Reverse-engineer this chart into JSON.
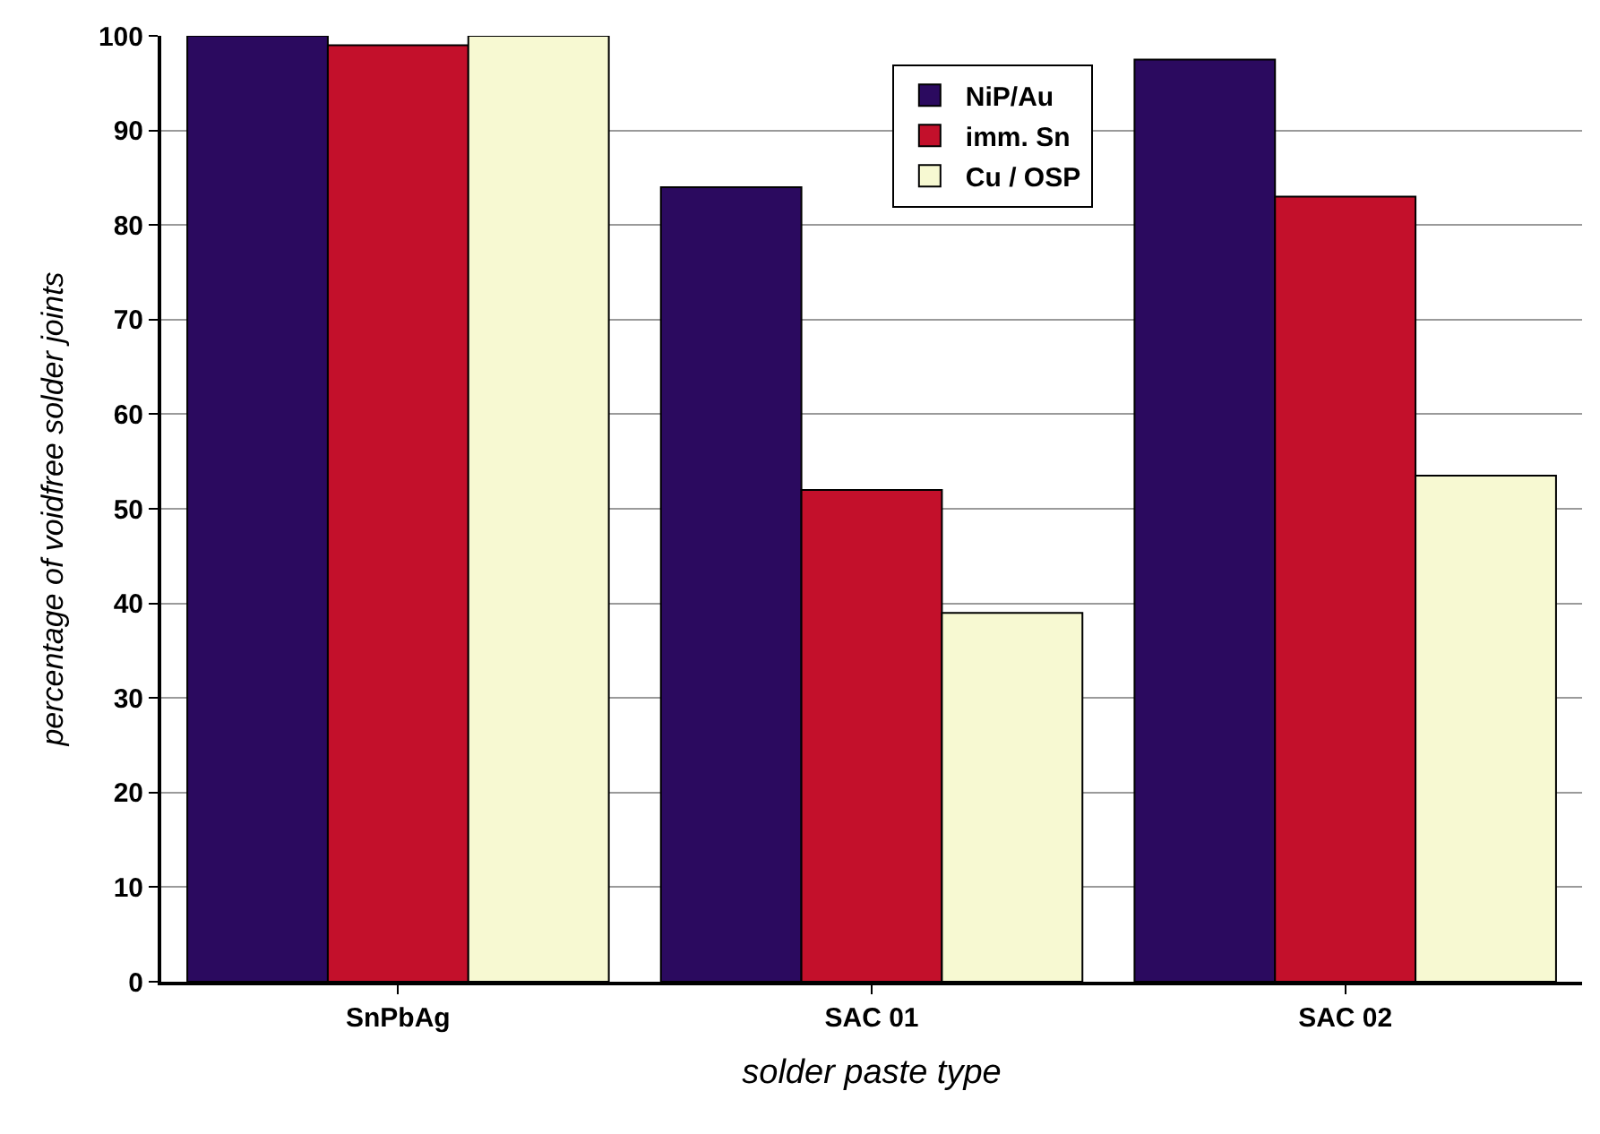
{
  "chart_data": {
    "type": "bar",
    "xlabel": "solder paste type",
    "ylabel": "percentage of voidfree solder joints",
    "categories": [
      "SnPbAg",
      "SAC 01",
      "SAC 02"
    ],
    "series": [
      {
        "name": "NiP/Au",
        "color": "#2b0a5f",
        "values": [
          100,
          84,
          97.5
        ]
      },
      {
        "name": "imm. Sn",
        "color": "#c3102b",
        "values": [
          99,
          52,
          83
        ]
      },
      {
        "name": "Cu / OSP",
        "color": "#f7f9d2",
        "values": [
          100,
          39,
          53.5
        ]
      }
    ],
    "ylim": [
      0,
      100
    ],
    "yticks": [
      0,
      10,
      20,
      30,
      40,
      50,
      60,
      70,
      80,
      90,
      100
    ],
    "grid": "y",
    "legend": "top"
  }
}
